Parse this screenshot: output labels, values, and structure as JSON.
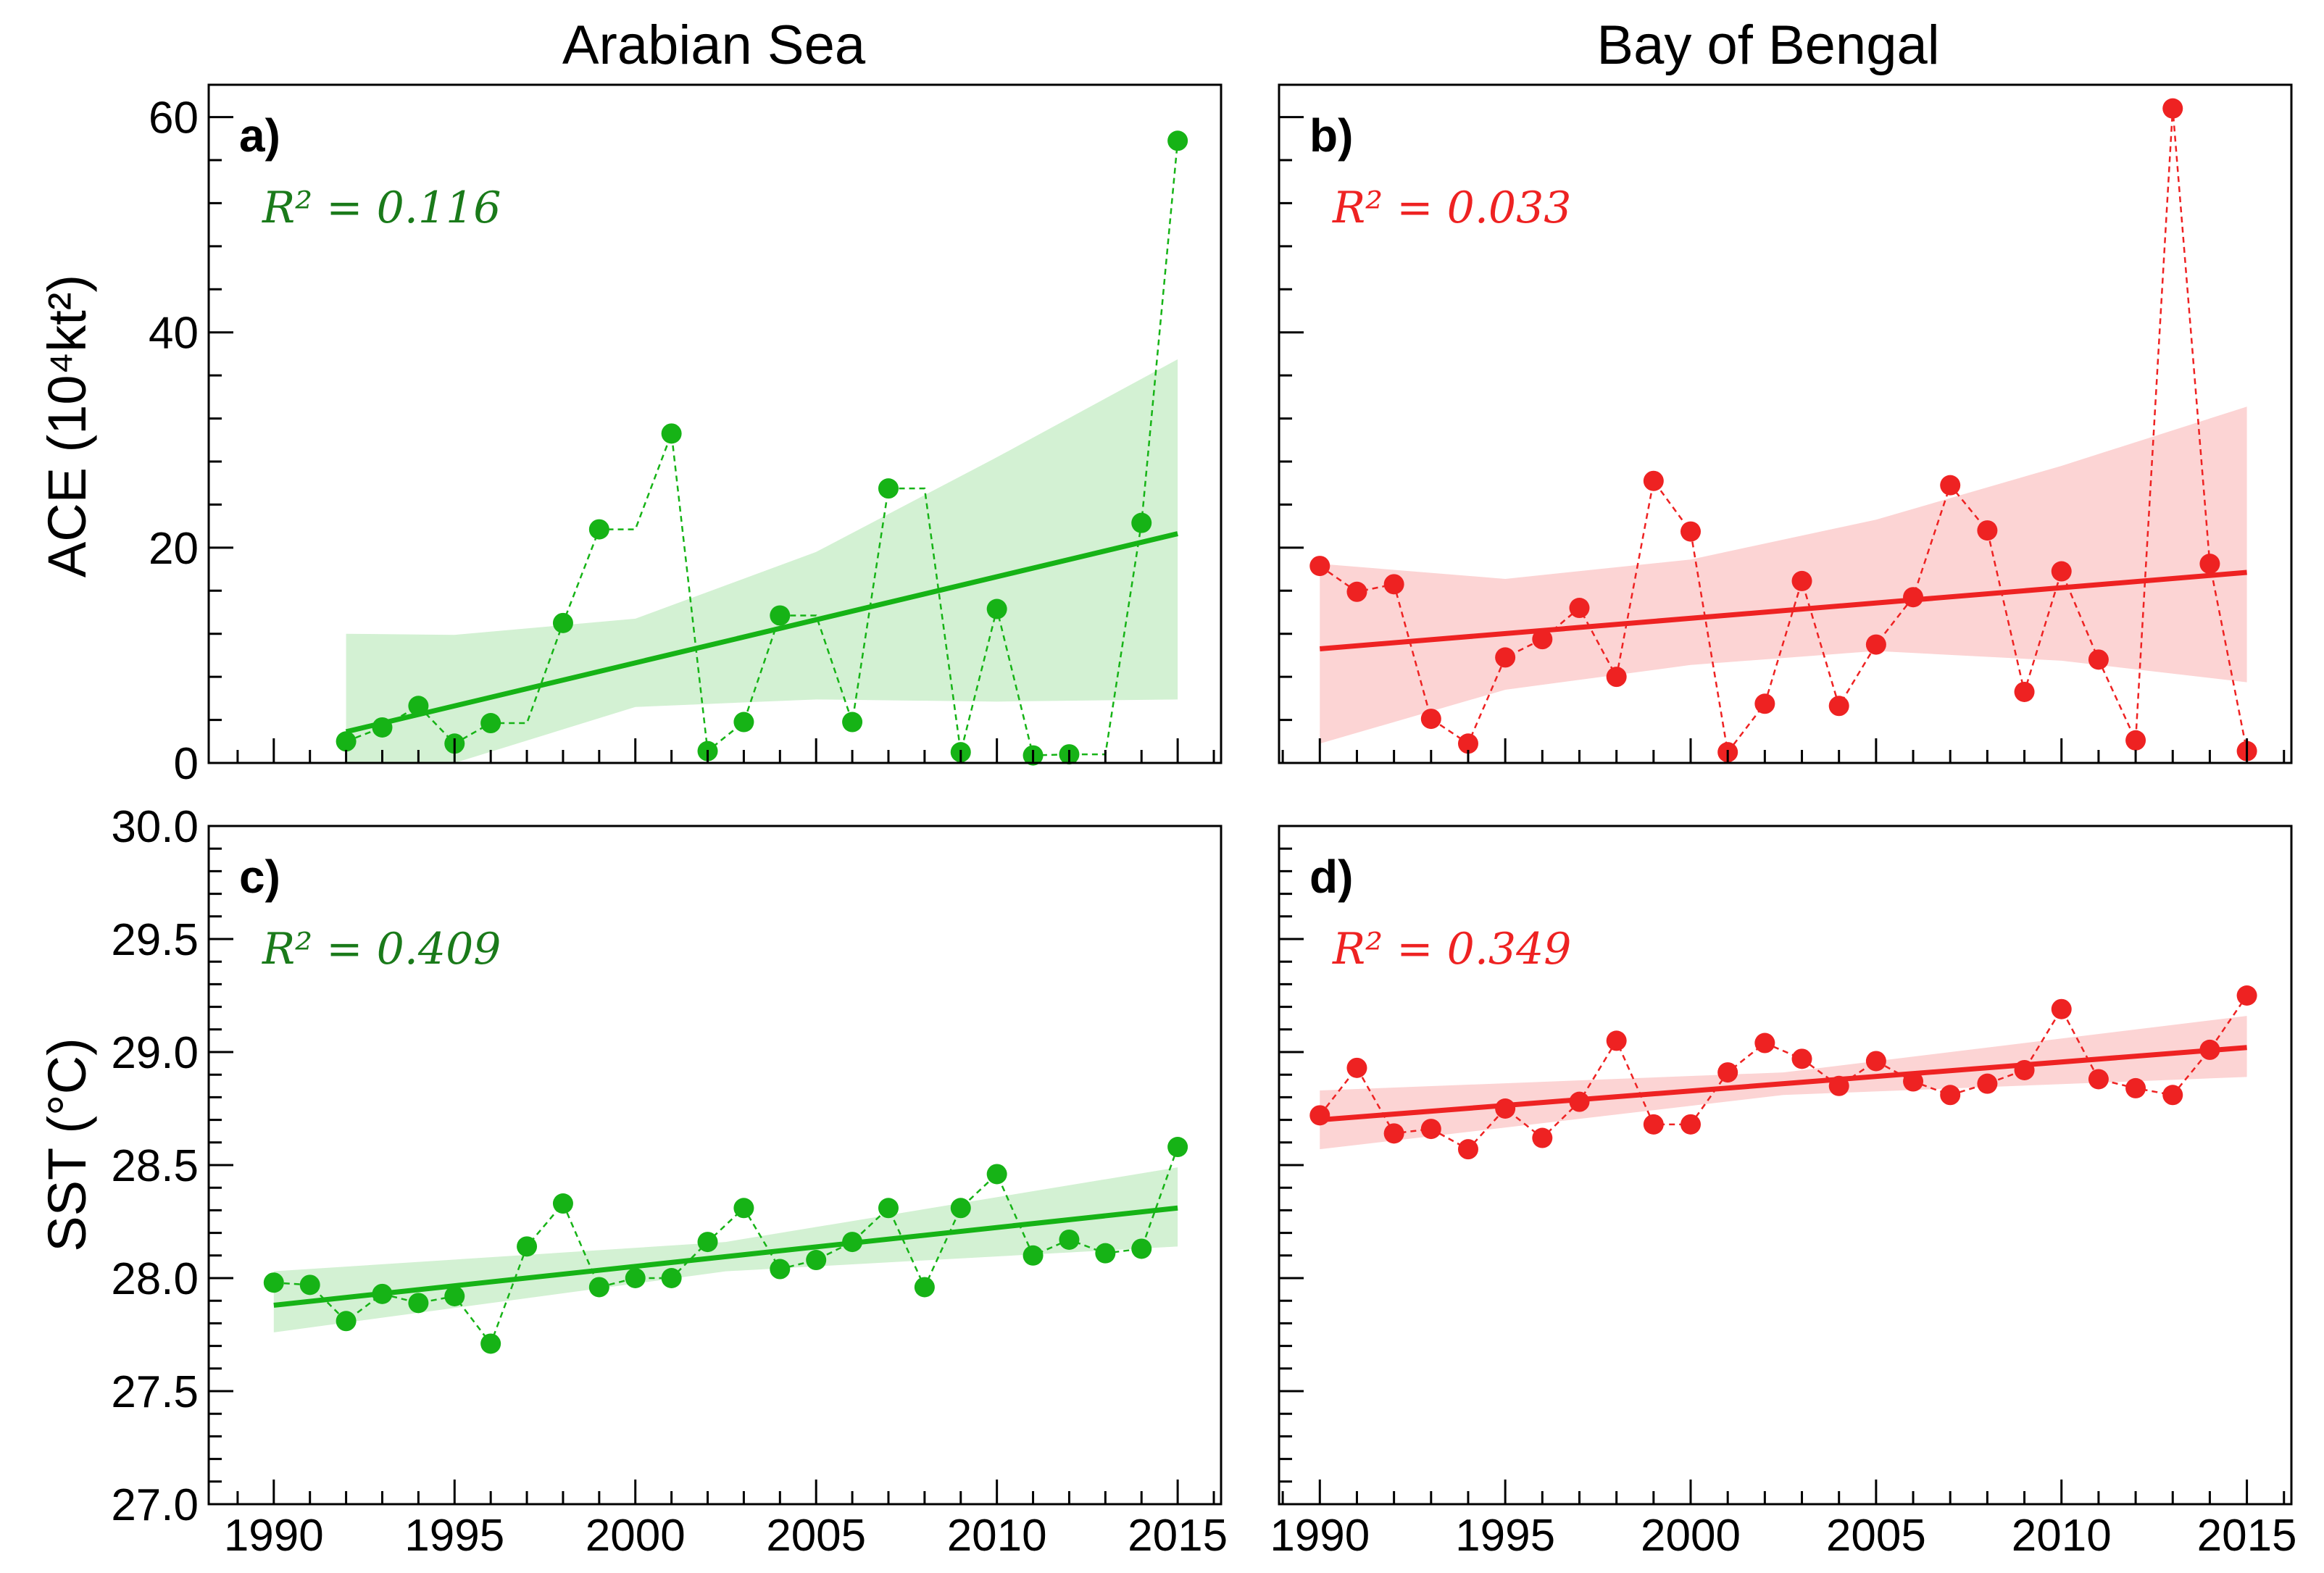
{
  "colors": {
    "arabian": "#16b316",
    "arabian_band": "#d3f1d3",
    "arabian_text": "#1a7a1a",
    "bengal": "#ee2222",
    "bengal_band": "#fcd4d4",
    "bengal_text": "#ee2222"
  },
  "column_titles": [
    "Arabian Sea",
    "Bay of Bengal"
  ],
  "y_axis_labels": {
    "top": "ACE (10⁴kt²)",
    "bottom": "SST (°C)"
  },
  "chart_data": [
    {
      "type": "scatter",
      "panel": "a)",
      "annotation": "R² = 0.116",
      "color": "arabian",
      "x": [
        1992,
        1993,
        1994,
        1995,
        1996,
        1997,
        1998,
        1999,
        2000,
        2001,
        2002,
        2003,
        2004,
        2005,
        2006,
        2007,
        2008,
        2009,
        2010,
        2011,
        2012,
        2013,
        2014,
        2015
      ],
      "y": [
        2.0,
        3.3,
        5.3,
        1.8,
        3.7,
        3.7,
        13.0,
        21.7,
        21.7,
        30.6,
        1.1,
        3.8,
        13.7,
        13.7,
        3.8,
        25.5,
        25.5,
        1.0,
        14.3,
        0.7,
        0.8,
        0.8,
        22.3,
        57.8
      ],
      "markers_x": [
        1992,
        1993,
        1994,
        1995,
        1996,
        1998,
        1999,
        2001,
        2002,
        2003,
        2004,
        2006,
        2007,
        2009,
        2010,
        2011,
        2012,
        2014,
        2015
      ],
      "markers_y": [
        2.0,
        3.3,
        5.3,
        1.8,
        3.7,
        13.0,
        21.7,
        30.6,
        1.1,
        3.8,
        13.7,
        3.8,
        25.5,
        1.0,
        14.3,
        0.7,
        0.8,
        22.3,
        57.8
      ],
      "fit": {
        "x": [
          1992,
          2015
        ],
        "y": [
          2.9,
          21.3
        ]
      },
      "band": {
        "x": [
          1992,
          1995,
          2000,
          2005,
          2010,
          2015
        ],
        "upper": [
          12.0,
          11.9,
          13.4,
          19.6,
          28.4,
          37.5
        ],
        "lower": [
          0.0,
          0.0,
          5.2,
          5.9,
          5.7,
          5.9
        ]
      },
      "xlim": [
        1988.2,
        2016.2
      ],
      "ylim": [
        0,
        63
      ],
      "xticks": [
        1990,
        1995,
        2000,
        2005,
        2010,
        2015
      ],
      "yticks": [
        0,
        20,
        40,
        60
      ],
      "grid": false
    },
    {
      "type": "scatter",
      "panel": "b)",
      "annotation": "R² = 0.033",
      "color": "bengal",
      "x": [
        1990,
        1991,
        1992,
        1993,
        1994,
        1995,
        1996,
        1997,
        1998,
        1999,
        2000,
        2001,
        2002,
        2003,
        2004,
        2005,
        2006,
        2007,
        2008,
        2009,
        2010,
        2011,
        2012,
        2013,
        2014,
        2015
      ],
      "y": [
        18.3,
        15.9,
        16.6,
        4.1,
        1.8,
        9.8,
        11.5,
        14.4,
        8.0,
        26.2,
        21.5,
        1.0,
        5.5,
        16.9,
        5.3,
        11.0,
        15.4,
        25.8,
        21.6,
        6.6,
        17.8,
        9.6,
        2.1,
        60.8,
        18.5,
        1.1
      ],
      "fit": {
        "x": [
          1990,
          2015
        ],
        "y": [
          10.6,
          17.7
        ]
      },
      "band": {
        "x": [
          1990,
          1995,
          2000,
          2005,
          2010,
          2015
        ],
        "upper": [
          18.5,
          17.1,
          18.9,
          22.6,
          27.6,
          33.1
        ],
        "lower": [
          1.8,
          6.8,
          9.1,
          10.4,
          9.5,
          7.5
        ]
      },
      "xlim": [
        1988.9,
        2016.2
      ],
      "ylim": [
        0,
        63
      ],
      "xticks": [
        1990,
        1995,
        2000,
        2005,
        2010,
        2015
      ],
      "yticks": [
        0,
        20,
        40,
        60
      ],
      "grid": false
    },
    {
      "type": "scatter",
      "panel": "c)",
      "annotation": "R² = 0.409",
      "color": "arabian",
      "x": [
        1990,
        1991,
        1992,
        1993,
        1994,
        1995,
        1996,
        1997,
        1998,
        1999,
        2000,
        2001,
        2002,
        2003,
        2004,
        2005,
        2006,
        2007,
        2008,
        2009,
        2010,
        2011,
        2012,
        2013,
        2014,
        2015
      ],
      "y": [
        27.98,
        27.97,
        27.81,
        27.93,
        27.89,
        27.92,
        27.71,
        28.14,
        28.33,
        27.96,
        28.0,
        28.0,
        28.16,
        28.31,
        28.04,
        28.08,
        28.16,
        28.31,
        27.96,
        28.31,
        28.46,
        28.1,
        28.17,
        28.11,
        28.13,
        28.58
      ],
      "fit": {
        "x": [
          1990,
          2015
        ],
        "y": [
          27.88,
          28.31
        ]
      },
      "band": {
        "x": [
          1990,
          2002.5,
          2015
        ],
        "upper": [
          28.03,
          28.16,
          28.49
        ],
        "lower": [
          27.76,
          28.03,
          28.14
        ]
      },
      "xlim": [
        1988.2,
        2016.2
      ],
      "ylim": [
        27.0,
        30.0
      ],
      "xticks": [
        1990,
        1995,
        2000,
        2005,
        2010,
        2015
      ],
      "yticks": [
        27.0,
        27.5,
        28.0,
        28.5,
        29.0,
        29.5,
        30.0
      ],
      "grid": false
    },
    {
      "type": "scatter",
      "panel": "d)",
      "annotation": "R² = 0.349",
      "color": "bengal",
      "x": [
        1990,
        1991,
        1992,
        1993,
        1994,
        1995,
        1996,
        1997,
        1998,
        1999,
        2000,
        2001,
        2002,
        2003,
        2004,
        2005,
        2006,
        2007,
        2008,
        2009,
        2010,
        2011,
        2012,
        2013,
        2014,
        2015
      ],
      "y": [
        28.72,
        28.93,
        28.64,
        28.66,
        28.57,
        28.75,
        28.62,
        28.78,
        29.05,
        28.68,
        28.68,
        28.91,
        29.04,
        28.97,
        28.85,
        28.96,
        28.87,
        28.81,
        28.86,
        28.92,
        29.19,
        28.88,
        28.84,
        28.81,
        29.01,
        29.25
      ],
      "fit": {
        "x": [
          1990,
          2015
        ],
        "y": [
          28.7,
          29.02
        ]
      },
      "band": {
        "x": [
          1990,
          2002.5,
          2015
        ],
        "upper": [
          28.83,
          28.91,
          29.16
        ],
        "lower": [
          28.57,
          28.81,
          28.89
        ]
      },
      "xlim": [
        1988.9,
        2016.2
      ],
      "ylim": [
        27.0,
        30.0
      ],
      "xticks": [
        1990,
        1995,
        2000,
        2005,
        2010,
        2015
      ],
      "yticks": [
        27.0,
        27.5,
        28.0,
        28.5,
        29.0,
        29.5,
        30.0
      ],
      "grid": false
    }
  ]
}
